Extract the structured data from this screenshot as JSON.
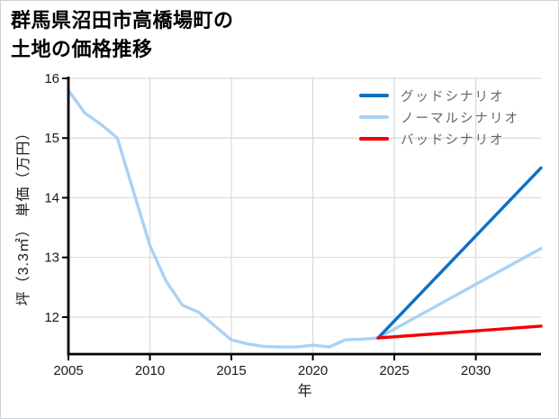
{
  "title": {
    "line1": "群馬県沼田市高橋場町の",
    "line2": "土地の価格推移"
  },
  "chart_data": {
    "type": "line",
    "title": "群馬県沼田市高橋場町の土地の価格推移",
    "xlabel": "年",
    "ylabel": "坪（3.3㎡） 単価（万円）",
    "xlim": [
      2005,
      2034
    ],
    "ylim": [
      11.38,
      16.03
    ],
    "xticks": [
      2005,
      2010,
      2015,
      2020,
      2025,
      2030
    ],
    "yticks": [
      12,
      13,
      14,
      15,
      16
    ],
    "grid": true,
    "grid_color": "#d9d9d9",
    "axis_color": "#000000",
    "tick_label_color": "#1a1a1a",
    "legend_position": "upper-right",
    "legend_text_color": "#666666",
    "series": [
      {
        "name": "グッドシナリオ",
        "color": "#0d70c5",
        "x": [
          2024,
          2034
        ],
        "y": [
          11.65,
          14.5
        ]
      },
      {
        "name": "ノーマルシナリオ",
        "color": "#a9d2f5",
        "x": [
          2005,
          2006,
          2007,
          2008,
          2009,
          2010,
          2011,
          2012,
          2013,
          2014,
          2015,
          2016,
          2017,
          2018,
          2019,
          2020,
          2021,
          2022,
          2023,
          2024,
          2034
        ],
        "y": [
          15.8,
          15.42,
          15.23,
          15.0,
          14.1,
          13.2,
          12.6,
          12.2,
          12.08,
          11.85,
          11.62,
          11.55,
          11.51,
          11.5,
          11.5,
          11.53,
          11.5,
          11.62,
          11.63,
          11.65,
          13.15
        ]
      },
      {
        "name": "バッドシナリオ",
        "color": "#f40000",
        "x": [
          2024,
          2034
        ],
        "y": [
          11.65,
          11.85
        ]
      }
    ]
  }
}
